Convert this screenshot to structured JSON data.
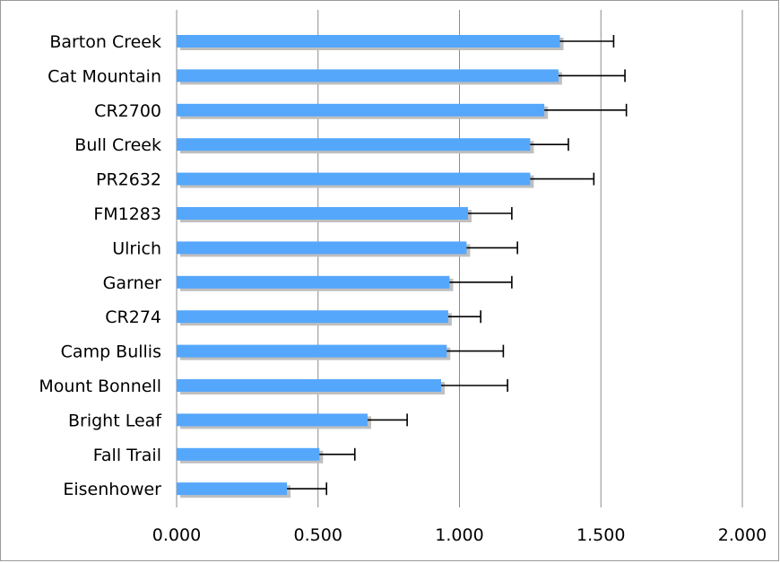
{
  "chart_data": {
    "type": "bar",
    "orientation": "horizontal",
    "title": "",
    "xlabel": "",
    "ylabel": "",
    "xlim": [
      0,
      2
    ],
    "x_ticks": [
      "0.000",
      "0.500",
      "1.000",
      "1.500",
      "2.000"
    ],
    "grid": true,
    "legend": "none",
    "bar_color": "#55a7fb",
    "shadow_color": "#bfbfbf",
    "categories": [
      "Barton Creek",
      "Cat Mountain",
      "CR2700",
      "Bull Creek",
      "PR2632",
      "FM1283",
      "Ulrich",
      "Garner",
      "CR274",
      "Camp Bullis",
      "Mount Bonnell",
      "Bright Leaf",
      "Fall Trail",
      "Eisenhower"
    ],
    "values": [
      1.355,
      1.35,
      1.3,
      1.25,
      1.25,
      1.03,
      1.025,
      0.965,
      0.96,
      0.955,
      0.935,
      0.675,
      0.505,
      0.39
    ],
    "error_upper": [
      1.545,
      1.585,
      1.59,
      1.385,
      1.475,
      1.185,
      1.205,
      1.185,
      1.075,
      1.155,
      1.17,
      0.815,
      0.63,
      0.53
    ]
  }
}
